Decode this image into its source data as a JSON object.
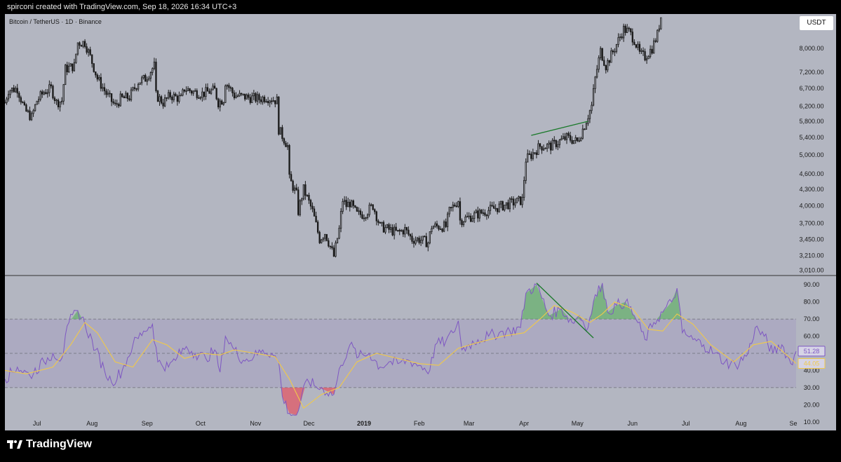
{
  "header": {
    "caption": "spirconi created with TradingView.com, Sep 18, 2026 16:34 UTC+3"
  },
  "chart_title": "Bitcoin / TetherUS · 1D · Binance",
  "currency": "USDT",
  "brand": "TradingView",
  "colors": {
    "background": "#b3b6c1",
    "candle": "#1a1a1a",
    "rsi_line": "#7e57c2",
    "rsi_ma": "#f0c94a",
    "overbought_fill": "#4caf50",
    "oversold_fill": "#f23645",
    "trendline": "#1b7a2b"
  },
  "chart_data": [
    {
      "type": "candlestick",
      "title": "Bitcoin / TetherUS · 1D · Binance",
      "scale": "log",
      "y_ticks": [
        "3,010.00",
        "3,210.00",
        "3,450.00",
        "3,700.00",
        "4,000.00",
        "4,300.00",
        "4,600.00",
        "5,000.00",
        "5,400.00",
        "5,800.00",
        "6,200.00",
        "6,700.00",
        "7,200.00",
        "8,000.00"
      ],
      "ylim": [
        2950,
        9300
      ],
      "x_ticks": [
        "Jul",
        "Aug",
        "Sep",
        "Oct",
        "Nov",
        "Dec",
        "2019",
        "Feb",
        "Mar",
        "Apr",
        "May",
        "Jun",
        "Jul",
        "Aug",
        "Se"
      ],
      "xlim": [
        "2018-06-13",
        "2019-09-01"
      ],
      "close_path": [
        [
          "2018-06-13",
          6300
        ],
        [
          "2018-06-15",
          6650
        ],
        [
          "2018-06-20",
          6700
        ],
        [
          "2018-06-24",
          6100
        ],
        [
          "2018-06-28",
          5900
        ],
        [
          "2018-07-01",
          6350
        ],
        [
          "2018-07-05",
          6600
        ],
        [
          "2018-07-09",
          6700
        ],
        [
          "2018-07-12",
          6300
        ],
        [
          "2018-07-15",
          6350
        ],
        [
          "2018-07-17",
          7300
        ],
        [
          "2018-07-22",
          7400
        ],
        [
          "2018-07-24",
          8200
        ],
        [
          "2018-07-28",
          8200
        ],
        [
          "2018-07-31",
          7700
        ],
        [
          "2018-08-04",
          7000
        ],
        [
          "2018-08-09",
          6550
        ],
        [
          "2018-08-14",
          6200
        ],
        [
          "2018-08-17",
          6400
        ],
        [
          "2018-08-22",
          6450
        ],
        [
          "2018-08-27",
          6900
        ],
        [
          "2018-08-31",
          7000
        ],
        [
          "2018-09-05",
          7400
        ],
        [
          "2018-09-06",
          6500
        ],
        [
          "2018-09-10",
          6300
        ],
        [
          "2018-09-14",
          6500
        ],
        [
          "2018-09-20",
          6400
        ],
        [
          "2018-09-22",
          6700
        ],
        [
          "2018-09-27",
          6600
        ],
        [
          "2018-10-02",
          6550
        ],
        [
          "2018-10-05",
          6600
        ],
        [
          "2018-10-09",
          6650
        ],
        [
          "2018-10-11",
          6300
        ],
        [
          "2018-10-14",
          6400
        ],
        [
          "2018-10-15",
          6900
        ],
        [
          "2018-10-20",
          6500
        ],
        [
          "2018-10-27",
          6450
        ],
        [
          "2018-11-03",
          6400
        ],
        [
          "2018-11-07",
          6450
        ],
        [
          "2018-11-13",
          6350
        ],
        [
          "2018-11-14",
          5600
        ],
        [
          "2018-11-19",
          5200
        ],
        [
          "2018-11-20",
          4500
        ],
        [
          "2018-11-24",
          4200
        ],
        [
          "2018-11-25",
          3900
        ],
        [
          "2018-11-28",
          4300
        ],
        [
          "2018-12-03",
          3900
        ],
        [
          "2018-12-07",
          3450
        ],
        [
          "2018-12-10",
          3550
        ],
        [
          "2018-12-15",
          3200
        ],
        [
          "2018-12-18",
          3600
        ],
        [
          "2018-12-20",
          4100
        ],
        [
          "2018-12-22",
          4000
        ],
        [
          "2018-12-24",
          4050
        ],
        [
          "2018-12-28",
          3850
        ],
        [
          "2019-01-01",
          3850
        ],
        [
          "2019-01-06",
          4000
        ],
        [
          "2019-01-10",
          3650
        ],
        [
          "2019-01-15",
          3600
        ],
        [
          "2019-01-20",
          3550
        ],
        [
          "2019-01-24",
          3600
        ],
        [
          "2019-01-28",
          3450
        ],
        [
          "2019-02-01",
          3450
        ],
        [
          "2019-02-06",
          3400
        ],
        [
          "2019-02-08",
          3650
        ],
        [
          "2019-02-16",
          3650
        ],
        [
          "2019-02-18",
          3900
        ],
        [
          "2019-02-23",
          4100
        ],
        [
          "2019-02-24",
          3750
        ],
        [
          "2019-03-01",
          3800
        ],
        [
          "2019-03-10",
          3900
        ],
        [
          "2019-03-20",
          4000
        ],
        [
          "2019-03-31",
          4100
        ],
        [
          "2019-04-02",
          4900
        ],
        [
          "2019-04-05",
          5000
        ],
        [
          "2019-04-10",
          5200
        ],
        [
          "2019-04-16",
          5200
        ],
        [
          "2019-04-25",
          5400
        ],
        [
          "2019-05-01",
          5300
        ],
        [
          "2019-05-05",
          5700
        ],
        [
          "2019-05-09",
          6200
        ],
        [
          "2019-05-11",
          7000
        ],
        [
          "2019-05-14",
          7900
        ],
        [
          "2019-05-17",
          7400
        ],
        [
          "2019-05-22",
          8000
        ],
        [
          "2019-05-27",
          8700
        ],
        [
          "2019-05-30",
          8600
        ],
        [
          "2019-06-02",
          8300
        ],
        [
          "2019-06-05",
          7800
        ],
        [
          "2019-06-08",
          7700
        ],
        [
          "2019-06-12",
          8000
        ],
        [
          "2019-06-15",
          8500
        ],
        [
          "2019-06-17",
          9200
        ]
      ],
      "trendline": [
        [
          "2019-04-05",
          5450
        ],
        [
          "2019-05-07",
          5800
        ]
      ]
    },
    {
      "type": "line",
      "title": "RSI",
      "y_ticks": [
        "10.00",
        "20.00",
        "30.00",
        "40.00",
        "50.00",
        "60.00",
        "70.00",
        "80.00",
        "90.00"
      ],
      "ylim": [
        5,
        95
      ],
      "bands": [
        30,
        50,
        70
      ],
      "last_values": {
        "rsi": "51.28",
        "rsi_ma": "44.05"
      },
      "series": [
        {
          "values": [
            [
              "2018-06-13",
              35
            ],
            [
              "2018-06-20",
              42
            ],
            [
              "2018-06-27",
              37
            ],
            [
              "2018-07-05",
              45
            ],
            [
              "2018-07-10",
              50
            ],
            [
              "2018-07-15",
              47
            ],
            [
              "2018-07-19",
              68
            ],
            [
              "2018-07-24",
              75
            ],
            [
              "2018-07-28",
              67
            ],
            [
              "2018-08-03",
              52
            ],
            [
              "2018-08-08",
              40
            ],
            [
              "2018-08-12",
              33
            ],
            [
              "2018-08-18",
              40
            ],
            [
              "2018-08-24",
              55
            ],
            [
              "2018-08-30",
              63
            ],
            [
              "2018-09-04",
              67
            ],
            [
              "2018-09-07",
              45
            ],
            [
              "2018-09-13",
              42
            ],
            [
              "2018-09-18",
              48
            ],
            [
              "2018-09-23",
              54
            ],
            [
              "2018-09-28",
              50
            ],
            [
              "2018-10-04",
              47
            ],
            [
              "2018-10-09",
              52
            ],
            [
              "2018-10-12",
              39
            ],
            [
              "2018-10-15",
              60
            ],
            [
              "2018-10-20",
              52
            ],
            [
              "2018-10-25",
              46
            ],
            [
              "2018-10-31",
              48
            ],
            [
              "2018-11-05",
              52
            ],
            [
              "2018-11-10",
              50
            ],
            [
              "2018-11-14",
              45
            ],
            [
              "2018-11-16",
              25
            ],
            [
              "2018-11-20",
              15
            ],
            [
              "2018-11-24",
              14
            ],
            [
              "2018-11-26",
              20
            ],
            [
              "2018-11-30",
              35
            ],
            [
              "2018-12-04",
              31
            ],
            [
              "2018-12-09",
              29
            ],
            [
              "2018-12-15",
              26
            ],
            [
              "2018-12-19",
              43
            ],
            [
              "2018-12-24",
              55
            ],
            [
              "2018-12-29",
              48
            ],
            [
              "2019-01-04",
              50
            ],
            [
              "2019-01-10",
              42
            ],
            [
              "2019-01-15",
              45
            ],
            [
              "2019-01-20",
              44
            ],
            [
              "2019-01-26",
              46
            ],
            [
              "2019-02-01",
              43
            ],
            [
              "2019-02-07",
              40
            ],
            [
              "2019-02-10",
              55
            ],
            [
              "2019-02-16",
              57
            ],
            [
              "2019-02-20",
              62
            ],
            [
              "2019-02-23",
              69
            ],
            [
              "2019-02-25",
              52
            ],
            [
              "2019-03-01",
              55
            ],
            [
              "2019-03-06",
              58
            ],
            [
              "2019-03-12",
              60
            ],
            [
              "2019-03-18",
              62
            ],
            [
              "2019-03-24",
              63
            ],
            [
              "2019-03-30",
              65
            ],
            [
              "2019-04-02",
              85
            ],
            [
              "2019-04-08",
              90
            ],
            [
              "2019-04-15",
              72
            ],
            [
              "2019-04-22",
              76
            ],
            [
              "2019-04-28",
              68
            ],
            [
              "2019-05-02",
              72
            ],
            [
              "2019-05-07",
              65
            ],
            [
              "2019-05-10",
              80
            ],
            [
              "2019-05-15",
              91
            ],
            [
              "2019-05-18",
              74
            ],
            [
              "2019-05-23",
              78
            ],
            [
              "2019-05-28",
              80
            ],
            [
              "2019-06-02",
              72
            ],
            [
              "2019-06-08",
              58
            ],
            [
              "2019-06-13",
              68
            ],
            [
              "2019-06-18",
              74
            ],
            [
              "2019-06-23",
              80
            ],
            [
              "2019-06-26",
              88
            ],
            [
              "2019-06-29",
              62
            ],
            [
              "2019-07-05",
              58
            ],
            [
              "2019-07-11",
              55
            ],
            [
              "2019-07-17",
              50
            ],
            [
              "2019-07-23",
              45
            ],
            [
              "2019-07-29",
              43
            ],
            [
              "2019-08-05",
              50
            ],
            [
              "2019-08-09",
              65
            ],
            [
              "2019-08-14",
              60
            ],
            [
              "2019-08-19",
              50
            ],
            [
              "2019-08-24",
              55
            ],
            [
              "2019-08-29",
              44
            ],
            [
              "2019-09-01",
              51.28
            ]
          ]
        },
        {
          "values": [
            [
              "2018-06-13",
              40
            ],
            [
              "2018-06-25",
              38
            ],
            [
              "2018-07-10",
              42
            ],
            [
              "2018-07-20",
              55
            ],
            [
              "2018-07-28",
              68
            ],
            [
              "2018-08-04",
              62
            ],
            [
              "2018-08-14",
              45
            ],
            [
              "2018-08-24",
              42
            ],
            [
              "2018-09-04",
              58
            ],
            [
              "2018-09-12",
              55
            ],
            [
              "2018-09-22",
              47
            ],
            [
              "2018-10-02",
              50
            ],
            [
              "2018-10-12",
              49
            ],
            [
              "2018-10-20",
              52
            ],
            [
              "2018-11-01",
              50
            ],
            [
              "2018-11-12",
              48
            ],
            [
              "2018-11-20",
              35
            ],
            [
              "2018-11-28",
              18
            ],
            [
              "2018-12-08",
              26
            ],
            [
              "2018-12-18",
              30
            ],
            [
              "2018-12-28",
              45
            ],
            [
              "2019-01-08",
              50
            ],
            [
              "2019-01-20",
              47
            ],
            [
              "2019-02-01",
              44
            ],
            [
              "2019-02-12",
              43
            ],
            [
              "2019-02-23",
              53
            ],
            [
              "2019-03-05",
              56
            ],
            [
              "2019-03-20",
              60
            ],
            [
              "2019-04-01",
              62
            ],
            [
              "2019-04-10",
              70
            ],
            [
              "2019-04-18",
              78
            ],
            [
              "2019-04-28",
              74
            ],
            [
              "2019-05-08",
              68
            ],
            [
              "2019-05-15",
              73
            ],
            [
              "2019-05-22",
              80
            ],
            [
              "2019-06-01",
              76
            ],
            [
              "2019-06-10",
              64
            ],
            [
              "2019-06-18",
              63
            ],
            [
              "2019-06-26",
              73
            ],
            [
              "2019-07-05",
              67
            ],
            [
              "2019-07-15",
              55
            ],
            [
              "2019-07-28",
              45
            ],
            [
              "2019-08-08",
              55
            ],
            [
              "2019-08-18",
              57
            ],
            [
              "2019-09-01",
              44.05
            ]
          ]
        }
      ],
      "trendline": [
        [
          "2019-04-08",
          91
        ],
        [
          "2019-05-10",
          59
        ]
      ]
    }
  ]
}
